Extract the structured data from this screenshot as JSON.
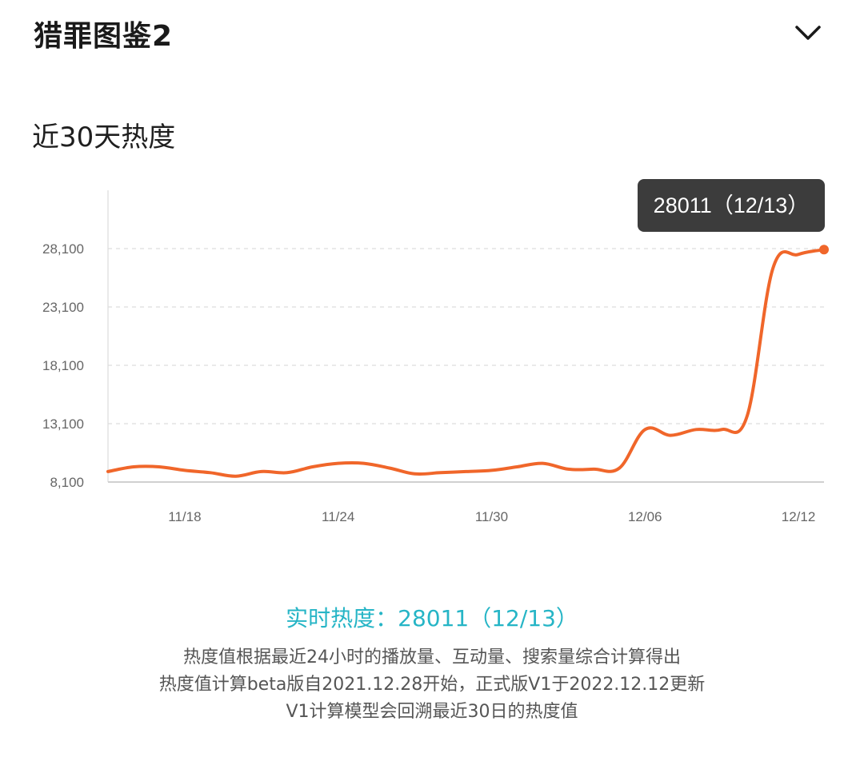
{
  "header": {
    "title": "猎罪图鉴2"
  },
  "section": {
    "title": "近30天热度"
  },
  "colors": {
    "line": "#f0662a",
    "accent": "#26b5c6",
    "tooltip_bg": "#3c3c3c",
    "grid": "#dddddd"
  },
  "chart_data": {
    "type": "line",
    "x": [
      "11/15",
      "11/16",
      "11/17",
      "11/18",
      "11/19",
      "11/20",
      "11/21",
      "11/22",
      "11/23",
      "11/24",
      "11/25",
      "11/26",
      "11/27",
      "11/28",
      "11/29",
      "11/30",
      "12/01",
      "12/02",
      "12/03",
      "12/04",
      "12/05",
      "12/06",
      "12/07",
      "12/08",
      "12/09",
      "12/10",
      "12/11",
      "12/12",
      "12/13"
    ],
    "y": [
      9000,
      9400,
      9400,
      9100,
      8900,
      8600,
      9000,
      8900,
      9400,
      9700,
      9700,
      9300,
      8800,
      8900,
      9000,
      9100,
      9400,
      9700,
      9200,
      9200,
      9300,
      12600,
      12100,
      12600,
      12600,
      13800,
      26400,
      27600,
      28011
    ],
    "ytick_labels": [
      "28,100",
      "23,100",
      "18,100",
      "13,100",
      "8,100"
    ],
    "ytick_values": [
      28100,
      23100,
      18100,
      13100,
      8100
    ],
    "xtick_labels": [
      "11/18",
      "11/24",
      "11/30",
      "12/06",
      "12/12"
    ],
    "ylim": [
      8100,
      33100
    ],
    "grid": "horizontal dashed",
    "series_color": "#f0662a",
    "tooltip": "28011（12/13）"
  },
  "realtime": {
    "label": "实时热度：",
    "value": "28011（12/13）"
  },
  "description": {
    "line1": "热度值根据最近24小时的播放量、互动量、搜索量综合计算得出",
    "line2": "热度值计算beta版自2021.12.28开始，正式版V1于2022.12.12更新",
    "line3": "V1计算模型会回溯最近30日的热度值"
  }
}
